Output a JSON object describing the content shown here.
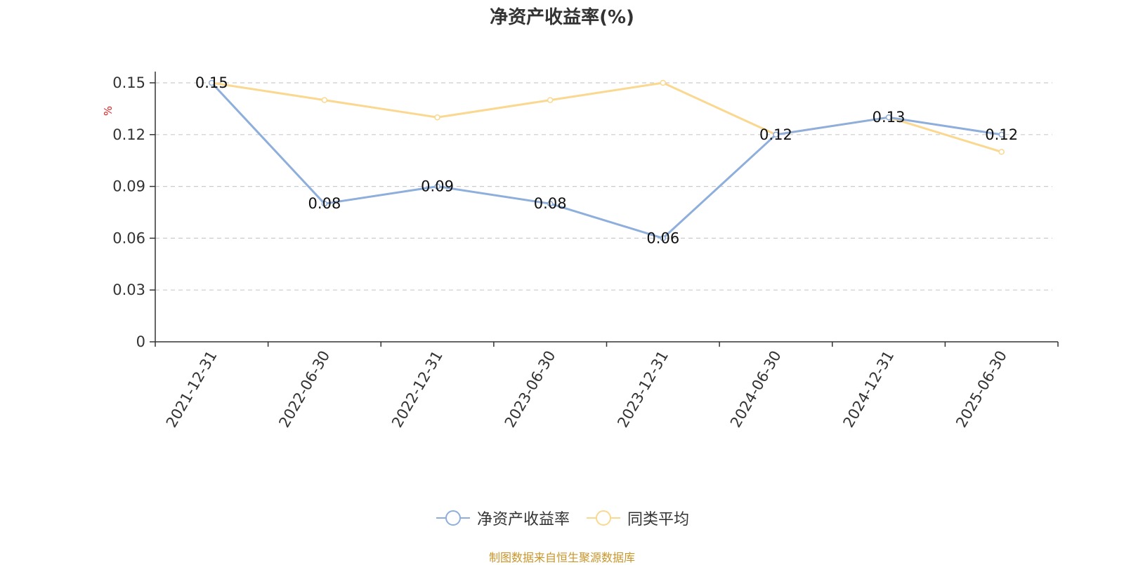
{
  "title": "净资产收益率(%)",
  "source": "制图数据来自恒生聚源数据库",
  "chart_data": {
    "type": "line",
    "title": "净资产收益率(%)",
    "ylabel": "%",
    "x": [
      "2021-12-31",
      "2022-06-30",
      "2022-12-31",
      "2023-06-30",
      "2023-12-31",
      "2024-06-30",
      "2024-12-31",
      "2025-06-30"
    ],
    "yticks": [
      "0",
      "0.03",
      "0.06",
      "0.09",
      "0.12",
      "0.15"
    ],
    "ylim": [
      0,
      0.15
    ],
    "grid": true,
    "legend_position": "bottom",
    "series": [
      {
        "name": "净资产收益率",
        "color": "#8eaedb",
        "values": [
          0.15,
          0.08,
          0.09,
          0.08,
          0.06,
          0.12,
          0.13,
          0.12
        ],
        "labels": [
          "0.15",
          "0.08",
          "0.09",
          "0.08",
          "0.06",
          "0.12",
          "0.13",
          "0.12"
        ]
      },
      {
        "name": "同类平均",
        "color": "#fad890",
        "values": [
          0.15,
          0.14,
          0.13,
          0.14,
          0.15,
          0.12,
          0.13,
          0.11
        ]
      }
    ]
  }
}
